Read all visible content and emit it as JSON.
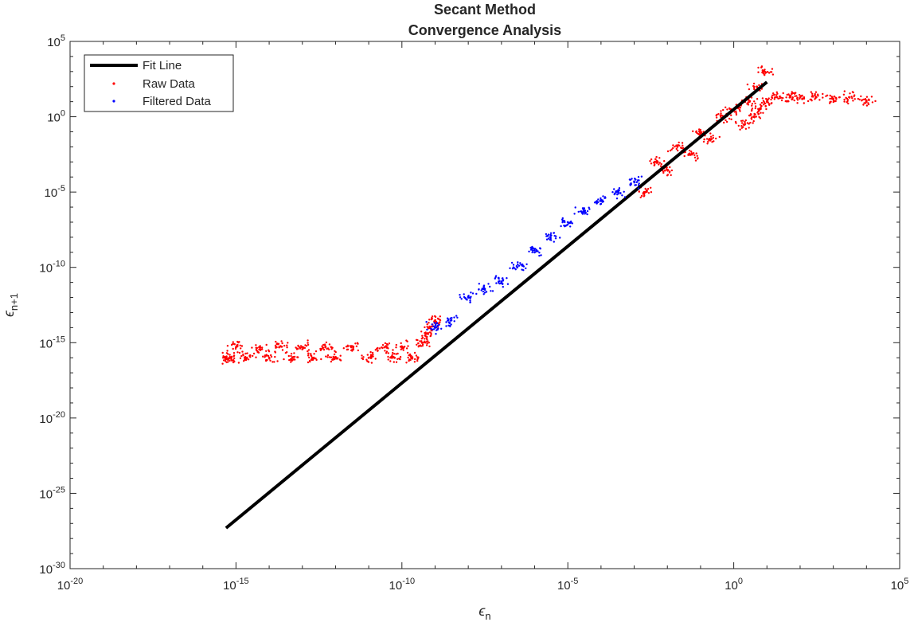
{
  "chart_data": {
    "type": "scatter",
    "title": "Secant Method",
    "subtitle": "Convergence Analysis",
    "xlabel": "ϵn",
    "ylabel": "ϵn+1",
    "xlabel_symbol": "ϵ",
    "xlabel_sub": "n",
    "ylabel_symbol": "ϵ",
    "ylabel_sub": "n+1",
    "xscale": "log",
    "yscale": "log",
    "xlim": [
      1e-20,
      100000.0
    ],
    "ylim": [
      1e-30,
      100000.0
    ],
    "x_ticks": [
      {
        "base": "10",
        "exp": "-20",
        "value": 1e-20
      },
      {
        "base": "10",
        "exp": "-15",
        "value": 1e-15
      },
      {
        "base": "10",
        "exp": "-10",
        "value": 1e-10
      },
      {
        "base": "10",
        "exp": "-5",
        "value": 1e-05
      },
      {
        "base": "10",
        "exp": "0",
        "value": 1
      },
      {
        "base": "10",
        "exp": "5",
        "value": 100000.0
      }
    ],
    "y_ticks": [
      {
        "base": "10",
        "exp": "-30",
        "value": 1e-30
      },
      {
        "base": "10",
        "exp": "-25",
        "value": 1e-25
      },
      {
        "base": "10",
        "exp": "-20",
        "value": 1e-20
      },
      {
        "base": "10",
        "exp": "-15",
        "value": 1e-15
      },
      {
        "base": "10",
        "exp": "-10",
        "value": 1e-10
      },
      {
        "base": "10",
        "exp": "-5",
        "value": 1e-05
      },
      {
        "base": "10",
        "exp": "0",
        "value": 1
      },
      {
        "base": "10",
        "exp": "5",
        "value": 100000.0
      }
    ],
    "grid": false,
    "legend_position": "top-left",
    "series": [
      {
        "name": "Fit Line",
        "kind": "line",
        "color": "#000000",
        "x": [
          5e-16,
          10
        ],
        "y": [
          5e-28,
          200
        ]
      },
      {
        "name": "Raw Data",
        "kind": "scatter",
        "color": "#ff0000",
        "x": [
          5e-16,
          7e-16,
          1e-15,
          2e-15,
          5e-15,
          1e-14,
          2e-14,
          5e-14,
          1e-13,
          2e-13,
          5e-13,
          1e-12,
          3e-12,
          1e-11,
          3e-11,
          6e-11,
          1e-10,
          2e-10,
          4e-10,
          5e-10,
          7e-10,
          1e-09,
          0.002,
          0.005,
          0.01,
          0.02,
          0.05,
          0.1,
          0.2,
          0.5,
          1,
          2,
          3,
          4,
          5,
          6,
          8,
          10,
          20,
          50,
          100,
          300,
          1000,
          3000,
          10000
        ],
        "y": [
          1e-16,
          1e-16,
          5e-16,
          1e-16,
          5e-16,
          1e-16,
          5e-16,
          1e-16,
          5e-16,
          1e-16,
          5e-16,
          1e-16,
          5e-16,
          1e-16,
          5e-16,
          1e-16,
          5e-16,
          1e-16,
          1e-15,
          3e-15,
          1e-14,
          3e-14,
          1e-05,
          0.001,
          0.0003,
          0.01,
          0.003,
          0.1,
          0.03,
          1,
          3,
          0.3,
          10,
          1,
          100,
          3,
          1000,
          10,
          20,
          20,
          20,
          20,
          15,
          20,
          12
        ]
      },
      {
        "name": "Filtered Data",
        "kind": "scatter",
        "color": "#0000ff",
        "x": [
          1e-09,
          3e-09,
          1e-08,
          3e-08,
          1e-07,
          3e-07,
          1e-06,
          3e-06,
          1e-05,
          3e-05,
          0.0001,
          0.0003,
          0.001
        ],
        "y": [
          1e-14,
          3e-14,
          1e-12,
          4e-12,
          1e-11,
          1e-10,
          1e-09,
          1e-08,
          1e-07,
          5e-07,
          3e-06,
          1e-05,
          5e-05
        ]
      }
    ]
  }
}
